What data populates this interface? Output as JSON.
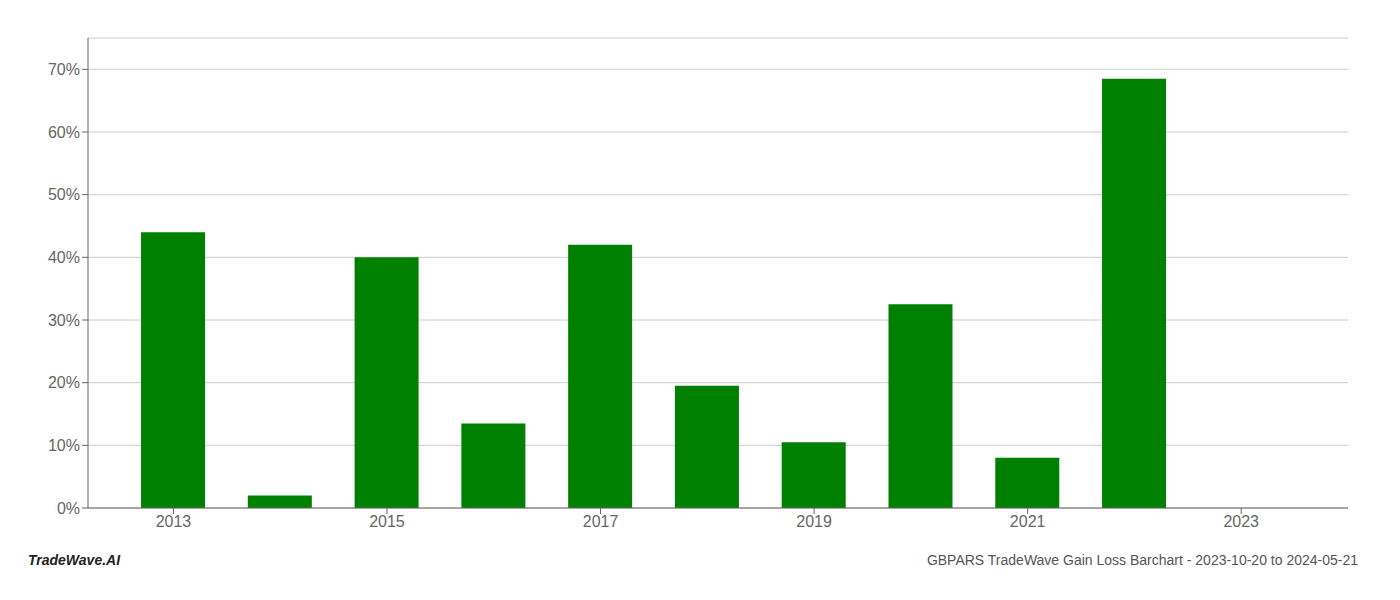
{
  "chart_data": {
    "type": "bar",
    "x": [
      2013,
      2014,
      2015,
      2016,
      2017,
      2018,
      2019,
      2020,
      2021,
      2022,
      2023
    ],
    "values": [
      0.44,
      0.02,
      0.4,
      0.135,
      0.42,
      0.195,
      0.105,
      0.325,
      0.08,
      0.685,
      0.0
    ],
    "color": "#008000",
    "xlim": [
      2012.2,
      2024.0
    ],
    "xticks": [
      2013,
      2015,
      2017,
      2019,
      2021,
      2023
    ],
    "ylim": [
      0,
      0.75
    ],
    "yticks": [
      {
        "value": 0.0,
        "label": "0%"
      },
      {
        "value": 0.1,
        "label": "10%"
      },
      {
        "value": 0.2,
        "label": "20%"
      },
      {
        "value": 0.3,
        "label": "30%"
      },
      {
        "value": 0.4,
        "label": "40%"
      },
      {
        "value": 0.5,
        "label": "50%"
      },
      {
        "value": 0.6,
        "label": "60%"
      },
      {
        "value": 0.7,
        "label": "70%"
      }
    ],
    "grid": true,
    "annotations": [
      "TradeWave.AI",
      "GBPARS TradeWave Gain Loss Barchart - 2023-10-20 to 2024-05-21"
    ]
  }
}
